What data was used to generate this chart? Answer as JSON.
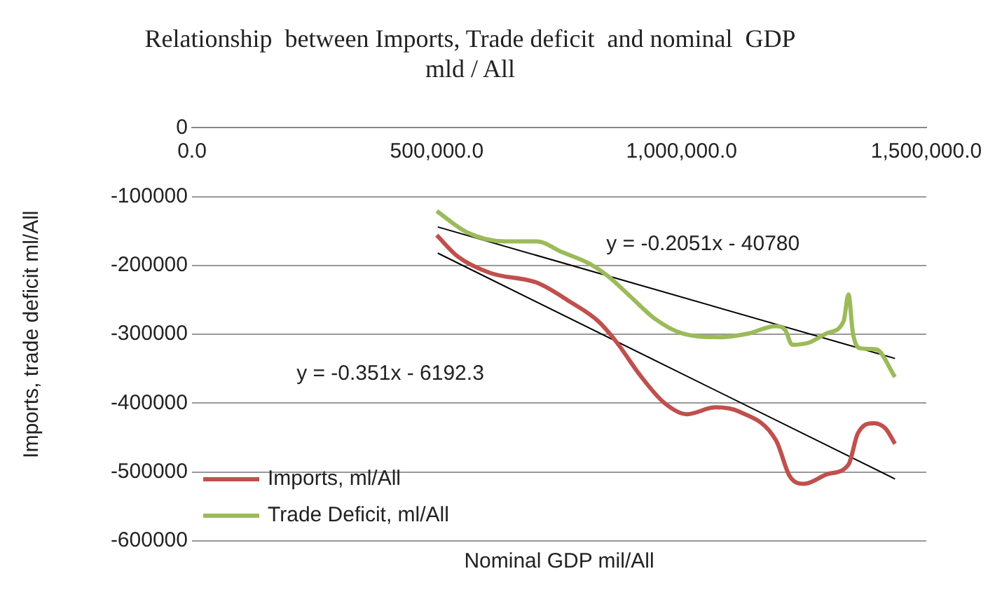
{
  "chart_data": {
    "type": "line",
    "title": "Relationship  between Imports, Trade deficit  and nominal  GDP\nmld / All",
    "xlabel": "Nominal GDP mil/All",
    "ylabel": "Imports, trade deficit ml/All",
    "xlim": [
      0,
      1500000
    ],
    "ylim": [
      -600000,
      0
    ],
    "xticks": [
      {
        "value": 0,
        "label": "0.0"
      },
      {
        "value": 500000,
        "label": "500,000.0"
      },
      {
        "value": 1000000,
        "label": "1,000,000.0"
      },
      {
        "value": 1500000,
        "label": "1,500,000.0"
      }
    ],
    "yticks": [
      -600000,
      -500000,
      -400000,
      -300000,
      -200000,
      -100000,
      0
    ],
    "grid": "y",
    "legend": "bottom left",
    "marker": "none",
    "line_style": "solid",
    "series": [
      {
        "name": "Imports, ml/All",
        "color": "#c0504d",
        "x": [
          500000,
          543000,
          610000,
          705000,
          773000,
          830000,
          868000,
          916000,
          964000,
          1011000,
          1069000,
          1117000,
          1193000,
          1221000,
          1250000,
          1298000,
          1341000,
          1360000,
          1393000,
          1417000,
          1436000
        ],
        "values": [
          -156000,
          -187000,
          -211000,
          -225000,
          -253000,
          -281000,
          -312000,
          -360000,
          -399000,
          -416000,
          -406000,
          -412000,
          -454000,
          -506000,
          -517000,
          -503000,
          -489000,
          -444000,
          -429000,
          -437000,
          -459000
        ]
      },
      {
        "name": "Trade Deficit, ml/All",
        "color": "#9bbb59",
        "x": [
          500000,
          562000,
          639000,
          705000,
          754000,
          811000,
          849000,
          897000,
          945000,
          1003000,
          1078000,
          1135000,
          1192000,
          1212000,
          1226000,
          1260000,
          1298000,
          1331000,
          1341000,
          1350000,
          1364000,
          1398000,
          1436000
        ],
        "values": [
          -121000,
          -152000,
          -165000,
          -165000,
          -180000,
          -197000,
          -215000,
          -246000,
          -277000,
          -299000,
          -304000,
          -299000,
          -288000,
          -294000,
          -315000,
          -312000,
          -298000,
          -281000,
          -242000,
          -298000,
          -320000,
          -322000,
          -362000
        ]
      },
      {
        "type": "line",
        "color": "#000000",
        "x": [
          502000,
          1436000
        ],
        "values": [
          -144000,
          -335000
        ]
      },
      {
        "type": "line",
        "color": "#000000",
        "x": [
          502000,
          1436000
        ],
        "values": [
          -182000,
          -510000
        ]
      }
    ],
    "annotations": [
      "y = -0.2051x - 40780",
      "y = -0.351x - 6192.3"
    ]
  }
}
